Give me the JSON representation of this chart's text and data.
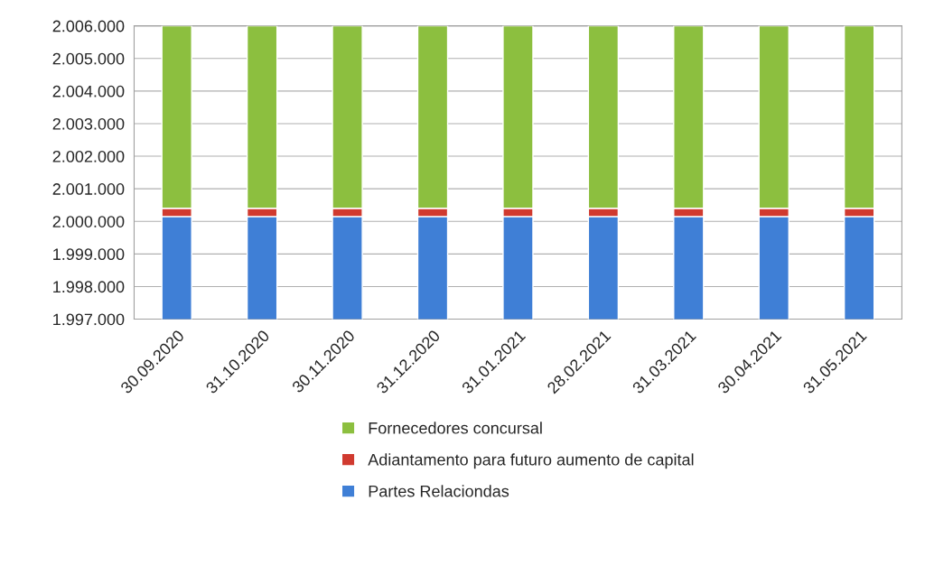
{
  "chart_data": {
    "type": "bar",
    "stacked": true,
    "categories": [
      "30.09.2020",
      "31.10.2020",
      "30.11.2020",
      "31.12.2020",
      "31.01.2021",
      "28.02.2021",
      "31.03.2021",
      "30.04.2021",
      "31.05.2021"
    ],
    "series": [
      {
        "name": "Partes Relaciondas",
        "color": "#3f7fd6",
        "values": [
          2000150,
          2000150,
          2000150,
          2000150,
          2000150,
          2000150,
          2000150,
          2000150,
          2000150
        ]
      },
      {
        "name": "Adiantamento para futuro aumento de capital",
        "color": "#d03a2f",
        "base": [
          2000150,
          2000150,
          2000150,
          2000150,
          2000150,
          2000150,
          2000150,
          2000150,
          2000150
        ],
        "values": [
          250,
          250,
          250,
          250,
          250,
          250,
          250,
          250,
          250
        ]
      },
      {
        "name": "Fornecedores concursal",
        "color": "#8cbf3f",
        "base": [
          2000400,
          2000400,
          2000400,
          2000400,
          2000400,
          2000400,
          2000400,
          2000400,
          2000400
        ],
        "values": [
          5600,
          5600,
          5600,
          5600,
          5600,
          5600,
          5600,
          5600,
          5600
        ]
      }
    ],
    "ylim": [
      1997000,
      2006000
    ],
    "yticks": [
      {
        "value": 1997000,
        "label": "1.997.000"
      },
      {
        "value": 1998000,
        "label": "1.998.000"
      },
      {
        "value": 1999000,
        "label": "1.999.000"
      },
      {
        "value": 2000000,
        "label": "2.000.000"
      },
      {
        "value": 2001000,
        "label": "2.001.000"
      },
      {
        "value": 2002000,
        "label": "2.002.000"
      },
      {
        "value": 2003000,
        "label": "2.003.000"
      },
      {
        "value": 2004000,
        "label": "2.004.000"
      },
      {
        "value": 2005000,
        "label": "2.005.000"
      },
      {
        "value": 2006000,
        "label": "2.006.000"
      }
    ],
    "grid": "y",
    "legend": "bottom"
  }
}
